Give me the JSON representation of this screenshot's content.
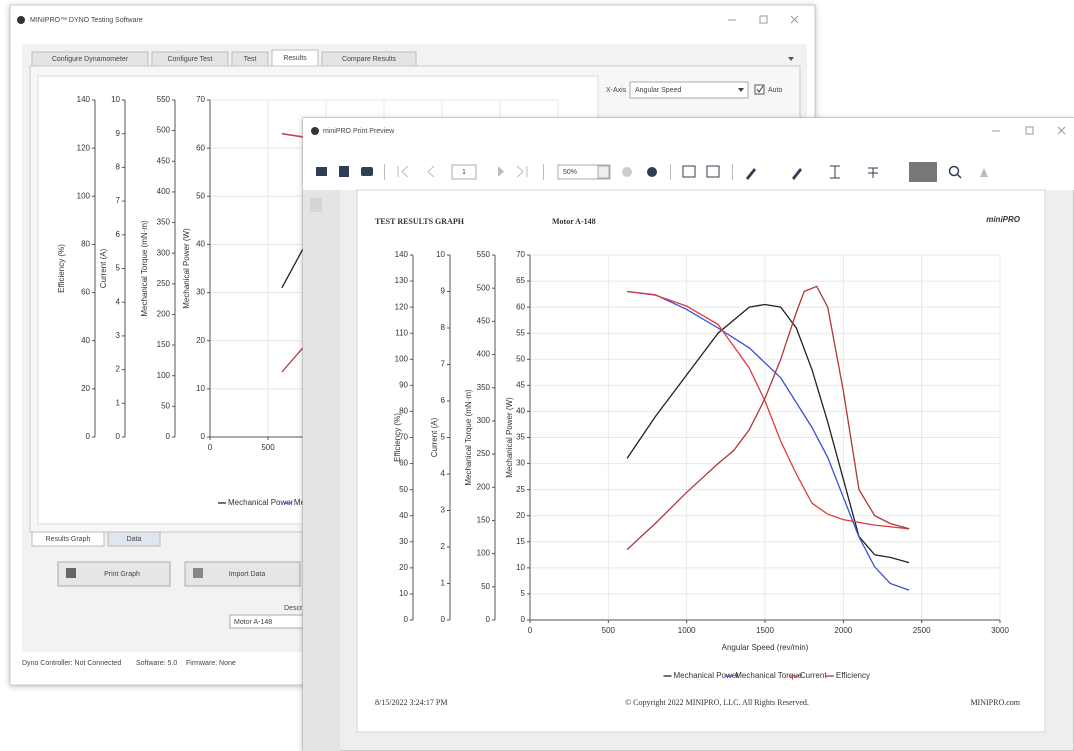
{
  "app": {
    "title": "MINIPRO™ DYNO Testing Software",
    "tabs": [
      "Configure Dynamometer",
      "Configure Test",
      "Test",
      "Results",
      "Compare Results"
    ],
    "x_axis_label": "X-Axis",
    "x_axis_value": "Angular Speed",
    "auto": "Auto",
    "bottom_tabs": [
      "Results Graph",
      "Data"
    ],
    "buttons": [
      "Print Graph",
      "Import Data"
    ],
    "description_label": "Description",
    "description_value": "Motor A-148",
    "status": [
      "Dyno Controller: Not Connected",
      "Software: 5.0",
      "Firmware: None"
    ]
  },
  "preview": {
    "title": "miniPRO Print Preview",
    "page": "1",
    "zoom": "50%",
    "logo": "miniPRO",
    "date": "8/15/2022 3:24:17 PM",
    "copyright": "© Copyright 2022 MINIPRO, LLC. All Rights Reserved.",
    "site": "MINIPRO.com"
  },
  "chart_data": [
    {
      "type": "line",
      "xlabel": "Angular Speed (rev/min)",
      "xlim": [
        0,
        3000
      ],
      "xticks": [
        0,
        500,
        1000,
        1500,
        2000,
        2500,
        3000
      ],
      "grid": true,
      "y_axes": [
        {
          "label": "Efficiency (%)",
          "lim": [
            0,
            140
          ],
          "ticks": [
            0,
            20,
            40,
            60,
            80,
            100,
            120,
            140
          ]
        },
        {
          "label": "Current (A)",
          "lim": [
            0,
            10
          ],
          "ticks": [
            0,
            1,
            2,
            3,
            4,
            5,
            6,
            7,
            8,
            9,
            10
          ]
        },
        {
          "label": "Mechanical Torque (mN·m)",
          "lim": [
            0,
            550
          ],
          "ticks": [
            0,
            50,
            100,
            150,
            200,
            250,
            300,
            350,
            400,
            450,
            500,
            550
          ]
        },
        {
          "label": "Mechanical Power (W)",
          "lim": [
            0,
            70
          ],
          "ticks": [
            0,
            10,
            20,
            30,
            40,
            50,
            60,
            70
          ]
        }
      ],
      "series": [
        {
          "name": "Mechanical Power",
          "color": "#222222",
          "axis": 3,
          "x": [
            620,
            800,
            1000,
            1200,
            1400,
            1500,
            1600,
            1700,
            1800,
            1900,
            2000,
            2100,
            2200,
            2300,
            2420
          ],
          "values": [
            31,
            39,
            47,
            55,
            60,
            60.5,
            60,
            56,
            48,
            38,
            27,
            16,
            12.5,
            12,
            11
          ]
        },
        {
          "name": "Mechanical Torque",
          "color": "#3a4fd8",
          "axis": 2,
          "x": [
            620,
            800,
            1000,
            1200,
            1400,
            1600,
            1800,
            1900,
            2000,
            2100,
            2200,
            2300,
            2420
          ],
          "values": [
            495,
            490,
            468,
            440,
            410,
            365,
            290,
            245,
            185,
            125,
            80,
            55,
            45
          ]
        },
        {
          "name": "Current",
          "color": "#e03a3a",
          "axis": 1,
          "x": [
            620,
            800,
            1000,
            1200,
            1400,
            1500,
            1600,
            1700,
            1800,
            1900,
            2000,
            2200,
            2420
          ],
          "values": [
            9.0,
            8.9,
            8.6,
            8.1,
            6.9,
            6.0,
            4.9,
            4.0,
            3.2,
            2.9,
            2.75,
            2.6,
            2.5
          ]
        },
        {
          "name": "Efficiency",
          "color": "#b03838",
          "axis": 0,
          "x": [
            620,
            800,
            1000,
            1200,
            1300,
            1400,
            1500,
            1600,
            1700,
            1750,
            1830,
            1900,
            2000,
            2100,
            2200,
            2300,
            2420
          ],
          "values": [
            27,
            37,
            49,
            60,
            65,
            73,
            85,
            100,
            118,
            126,
            128,
            120,
            88,
            50,
            40,
            37,
            35
          ]
        }
      ]
    },
    {
      "type": "line",
      "title": "TEST RESULTS GRAPH",
      "subtitle": "Motor A-148",
      "xlabel": "Angular Speed (rev/min)",
      "xlim": [
        0,
        3000
      ],
      "xticks": [
        0,
        500,
        1000,
        1500,
        2000,
        2500,
        3000
      ],
      "grid": true,
      "y_axes": [
        {
          "label": "Efficiency (%)",
          "lim": [
            0,
            140
          ],
          "ticks": [
            0,
            10,
            20,
            30,
            40,
            50,
            60,
            70,
            80,
            90,
            100,
            110,
            120,
            130,
            140
          ]
        },
        {
          "label": "Current (A)",
          "lim": [
            0,
            10
          ],
          "ticks": [
            0,
            1,
            2,
            3,
            4,
            5,
            6,
            7,
            8,
            9,
            10
          ]
        },
        {
          "label": "Mechanical Torque (mN·m)",
          "lim": [
            0,
            550
          ],
          "ticks": [
            0,
            50,
            100,
            150,
            200,
            250,
            300,
            350,
            400,
            450,
            500,
            550
          ]
        },
        {
          "label": "Mechanical Power (W)",
          "lim": [
            0,
            70
          ],
          "ticks": [
            0,
            5,
            10,
            15,
            20,
            25,
            30,
            35,
            40,
            45,
            50,
            55,
            60,
            65,
            70
          ]
        }
      ],
      "series": [
        {
          "name": "Mechanical Power",
          "color": "#222222",
          "axis": 3,
          "x": [
            620,
            800,
            1000,
            1200,
            1400,
            1500,
            1600,
            1700,
            1800,
            1900,
            2000,
            2100,
            2200,
            2300,
            2420
          ],
          "values": [
            31,
            39,
            47,
            55,
            60,
            60.5,
            60,
            56,
            48,
            38,
            27,
            16,
            12.5,
            12,
            11
          ]
        },
        {
          "name": "Mechanical Torque",
          "color": "#3a4fd8",
          "axis": 2,
          "x": [
            620,
            800,
            1000,
            1200,
            1400,
            1600,
            1800,
            1900,
            2000,
            2100,
            2200,
            2300,
            2420
          ],
          "values": [
            495,
            490,
            468,
            440,
            410,
            365,
            290,
            245,
            185,
            125,
            80,
            55,
            45
          ]
        },
        {
          "name": "Current",
          "color": "#e03a3a",
          "axis": 1,
          "x": [
            620,
            800,
            1000,
            1200,
            1400,
            1500,
            1600,
            1700,
            1800,
            1900,
            2000,
            2200,
            2420
          ],
          "values": [
            9.0,
            8.9,
            8.6,
            8.1,
            6.9,
            6.0,
            4.9,
            4.0,
            3.2,
            2.9,
            2.75,
            2.6,
            2.5
          ]
        },
        {
          "name": "Efficiency",
          "color": "#b03838",
          "axis": 0,
          "x": [
            620,
            800,
            1000,
            1200,
            1300,
            1400,
            1500,
            1600,
            1700,
            1750,
            1830,
            1900,
            2000,
            2100,
            2200,
            2300,
            2420
          ],
          "values": [
            27,
            37,
            49,
            60,
            65,
            73,
            85,
            100,
            118,
            126,
            128,
            120,
            88,
            50,
            40,
            37,
            35
          ]
        }
      ]
    }
  ]
}
